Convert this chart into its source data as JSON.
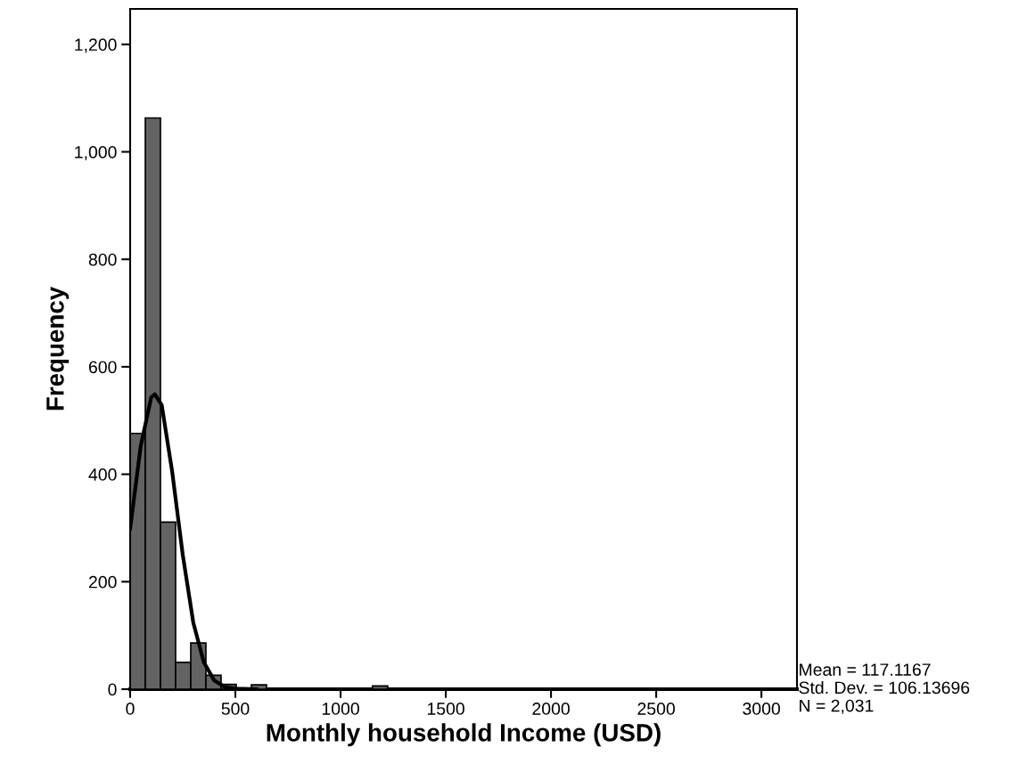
{
  "chart_data": {
    "type": "histogram",
    "xlabel": "Monthly household Income (USD)",
    "ylabel": "Frequency",
    "bins": [
      0,
      72,
      144,
      216,
      288,
      360,
      432,
      504,
      576,
      648,
      720,
      792,
      864,
      936,
      1008,
      1080,
      1152,
      1224
    ],
    "series": [
      {
        "color": "#636363",
        "values": [
          476,
          1063,
          311,
          50,
          86,
          26,
          9,
          0,
          8,
          0,
          0,
          0,
          0,
          0,
          0,
          0,
          6
        ]
      },
      {
        "type": "line",
        "color": "#000000",
        "x": [
          0,
          50,
          100,
          117,
          150,
          200,
          250,
          300,
          350,
          400,
          450,
          500,
          600
        ],
        "values": [
          299,
          452,
          543,
          549,
          529,
          404,
          250,
          124,
          50,
          16,
          4,
          1,
          0
        ]
      }
    ],
    "xlim": [
      0,
      3169
    ],
    "ylim": [
      0,
      1266
    ],
    "xticks": [
      0,
      500,
      1000,
      1500,
      2000,
      2500,
      3000
    ],
    "yticks": [
      0,
      200,
      400,
      600,
      800,
      {
        "value": 1000,
        "label": "1,000"
      },
      {
        "value": 1200,
        "label": "1,200"
      }
    ],
    "grid": false,
    "annotations": [
      "Mean = 117.1167",
      "Std. Dev. = 106.13696",
      "N = 2,031"
    ]
  }
}
